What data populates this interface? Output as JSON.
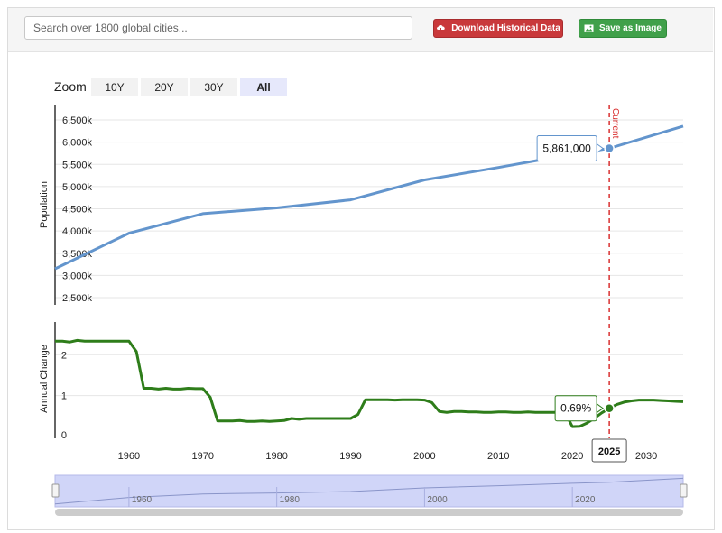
{
  "search": {
    "placeholder": "Search over 1800 global cities..."
  },
  "toolbar": {
    "download_label": "Download Historical Data",
    "save_label": "Save as Image"
  },
  "zoom": {
    "label": "Zoom",
    "options": [
      "10Y",
      "20Y",
      "30Y",
      "All"
    ],
    "active": "All"
  },
  "colors": {
    "population": "#6395cd",
    "change": "#2e7d1a",
    "current": "#d93030",
    "navigator": "#c8cef7"
  },
  "icons": {
    "download": "cloud-download-icon",
    "save": "image-icon"
  },
  "chart_data": [
    {
      "type": "line",
      "ylabel": "Population",
      "ylim": [
        2500,
        6600
      ],
      "yticks": [
        "2,500k",
        "3,000k",
        "3,500k",
        "4,000k",
        "4,500k",
        "5,000k",
        "5,500k",
        "6,000k",
        "6,500k"
      ],
      "ytick_values": [
        2500,
        3000,
        3500,
        4000,
        4500,
        5000,
        5500,
        6000,
        6500
      ],
      "x": [
        1950,
        1960,
        1970,
        1980,
        1990,
        2000,
        2010,
        2020,
        2025,
        2035
      ],
      "values": [
        3150,
        3950,
        4390,
        4520,
        4700,
        5150,
        5430,
        5730,
        5861,
        6360
      ],
      "current_year": 2025,
      "current_label": "Current",
      "tooltip": "5,861,000",
      "xlim": [
        1950,
        2035
      ]
    },
    {
      "type": "line",
      "ylabel": "Annual Change",
      "ylim": [
        0,
        2.8
      ],
      "yticks": [
        "0",
        "1",
        "2"
      ],
      "ytick_values": [
        0,
        1,
        2
      ],
      "x": [
        1950,
        1951,
        1952,
        1953,
        1954,
        1955,
        1956,
        1957,
        1958,
        1959,
        1960,
        1961,
        1962,
        1963,
        1964,
        1965,
        1966,
        1967,
        1968,
        1969,
        1970,
        1971,
        1972,
        1973,
        1974,
        1975,
        1976,
        1977,
        1978,
        1979,
        1980,
        1981,
        1982,
        1983,
        1984,
        1985,
        1986,
        1987,
        1988,
        1989,
        1990,
        1991,
        1992,
        1993,
        1994,
        1995,
        1996,
        1997,
        1998,
        1999,
        2000,
        2001,
        2002,
        2003,
        2004,
        2005,
        2006,
        2007,
        2008,
        2009,
        2010,
        2011,
        2012,
        2013,
        2014,
        2015,
        2016,
        2017,
        2018,
        2019,
        2020,
        2021,
        2022,
        2023,
        2024,
        2025,
        2026,
        2027,
        2028,
        2029,
        2030,
        2031,
        2032,
        2033,
        2034,
        2035
      ],
      "values": [
        2.33,
        2.33,
        2.31,
        2.35,
        2.33,
        2.33,
        2.33,
        2.33,
        2.33,
        2.33,
        2.33,
        2.08,
        1.18,
        1.18,
        1.16,
        1.18,
        1.16,
        1.16,
        1.18,
        1.17,
        1.17,
        0.96,
        0.38,
        0.38,
        0.38,
        0.39,
        0.37,
        0.37,
        0.38,
        0.37,
        0.38,
        0.39,
        0.44,
        0.42,
        0.44,
        0.44,
        0.44,
        0.44,
        0.44,
        0.44,
        0.44,
        0.54,
        0.9,
        0.9,
        0.9,
        0.9,
        0.89,
        0.9,
        0.9,
        0.9,
        0.89,
        0.83,
        0.61,
        0.59,
        0.61,
        0.61,
        0.6,
        0.6,
        0.59,
        0.59,
        0.6,
        0.6,
        0.59,
        0.59,
        0.6,
        0.59,
        0.59,
        0.59,
        0.59,
        0.59,
        0.24,
        0.25,
        0.33,
        0.45,
        0.58,
        0.69,
        0.78,
        0.84,
        0.87,
        0.89,
        0.89,
        0.89,
        0.88,
        0.87,
        0.86,
        0.85
      ],
      "tooltip": "0.69%",
      "current_year": 2025,
      "xlim": [
        1950,
        2035
      ],
      "xticks": [
        "1960",
        "1970",
        "1980",
        "1990",
        "2000",
        "2010",
        "2020",
        "2025",
        "2030"
      ],
      "xtick_values": [
        1960,
        1970,
        1980,
        1990,
        2000,
        2010,
        2020,
        2025,
        2030
      ]
    }
  ],
  "navigator": {
    "labels": [
      "1960",
      "1980",
      "2000",
      "2020"
    ],
    "label_values": [
      1960,
      1980,
      2000,
      2020
    ],
    "xlim": [
      1950,
      2035
    ]
  }
}
